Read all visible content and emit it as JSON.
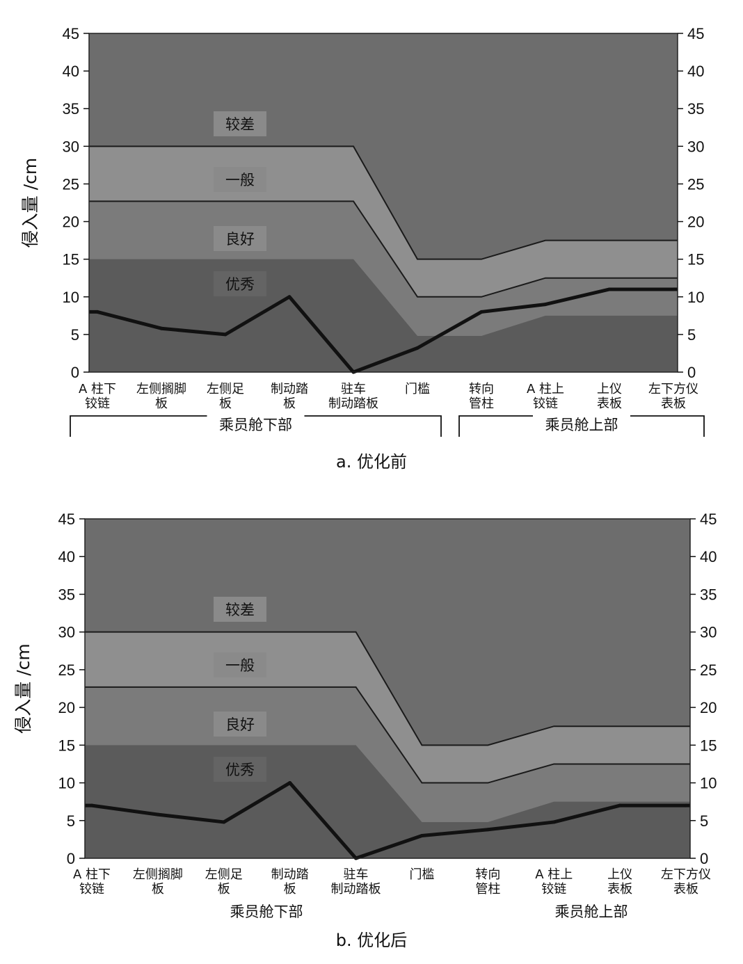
{
  "colors": {
    "poor": "#6d6d6d",
    "fair": "#8f8f8f",
    "good": "#7b7b7b",
    "excellent": "#5b5b5b",
    "label_box": "#8a8a8a",
    "line": "#111111"
  },
  "chart_data": [
    {
      "type": "area",
      "caption": "a. 优化前",
      "ylabel": "侵入量 /cm",
      "ylim": [
        0,
        45
      ],
      "yticks": [
        0,
        5,
        10,
        15,
        20,
        25,
        30,
        35,
        40,
        45
      ],
      "categories": [
        "A 柱下\n铰链",
        "左侧搁脚\n板",
        "左侧足\n板",
        "制动踏\n板",
        "驻车\n制动踏板",
        "门槛",
        "转向\n管柱",
        "A 柱上\n铰链",
        "上仪\n表板",
        "左下方仪\n表板"
      ],
      "groups": [
        {
          "label": "乘员舱下部",
          "from": 0,
          "to": 5
        },
        {
          "label": "乘员舱上部",
          "from": 6,
          "to": 9
        }
      ],
      "bands": [
        {
          "label": "较差",
          "top": [
            45,
            45,
            45,
            45,
            45,
            45,
            45,
            45,
            45,
            45
          ],
          "color": "poor"
        },
        {
          "label": "一般",
          "top": [
            30,
            30,
            30,
            30,
            30,
            15,
            15,
            17.5,
            17.5,
            17.5
          ],
          "color": "fair"
        },
        {
          "label": "良好",
          "top": [
            22.7,
            22.7,
            22.7,
            22.7,
            22.7,
            10,
            10,
            12.5,
            12.5,
            12.5
          ],
          "color": "good"
        },
        {
          "label": "优秀",
          "top": [
            15,
            15,
            15,
            15,
            15,
            4.8,
            4.8,
            7.5,
            7.5,
            7.5
          ],
          "color": "excellent"
        }
      ],
      "series": [
        {
          "values": [
            8,
            5.8,
            5,
            10,
            0,
            3.2,
            8,
            9,
            11,
            11
          ]
        }
      ]
    },
    {
      "type": "area",
      "caption": "b. 优化后",
      "ylabel": "侵入量 /cm",
      "ylim": [
        0,
        45
      ],
      "yticks": [
        0,
        5,
        10,
        15,
        20,
        25,
        30,
        35,
        40,
        45
      ],
      "categories": [
        "A 柱下\n铰链",
        "左侧搁脚\n板",
        "左侧足\n板",
        "制动踏\n板",
        "驻车\n制动踏板",
        "门槛",
        "转向\n管柱",
        "A 柱上\n铰链",
        "上仪\n表板",
        "左下方仪\n表板"
      ],
      "groups": [
        {
          "label": "乘员舱下部",
          "from": 0,
          "to": 5
        },
        {
          "label": "乘员舱上部",
          "from": 6,
          "to": 9
        }
      ],
      "bands": [
        {
          "label": "较差",
          "top": [
            45,
            45,
            45,
            45,
            45,
            45,
            45,
            45,
            45,
            45
          ],
          "color": "poor"
        },
        {
          "label": "一般",
          "top": [
            30,
            30,
            30,
            30,
            30,
            15,
            15,
            17.5,
            17.5,
            17.5
          ],
          "color": "fair"
        },
        {
          "label": "良好",
          "top": [
            22.7,
            22.7,
            22.7,
            22.7,
            22.7,
            10,
            10,
            12.5,
            12.5,
            12.5
          ],
          "color": "good"
        },
        {
          "label": "优秀",
          "top": [
            15,
            15,
            15,
            15,
            15,
            4.8,
            4.8,
            7.5,
            7.5,
            7.5
          ],
          "color": "excellent"
        }
      ],
      "series": [
        {
          "values": [
            7,
            5.8,
            4.8,
            10,
            0,
            3,
            3.8,
            4.8,
            7,
            7
          ]
        }
      ]
    }
  ]
}
